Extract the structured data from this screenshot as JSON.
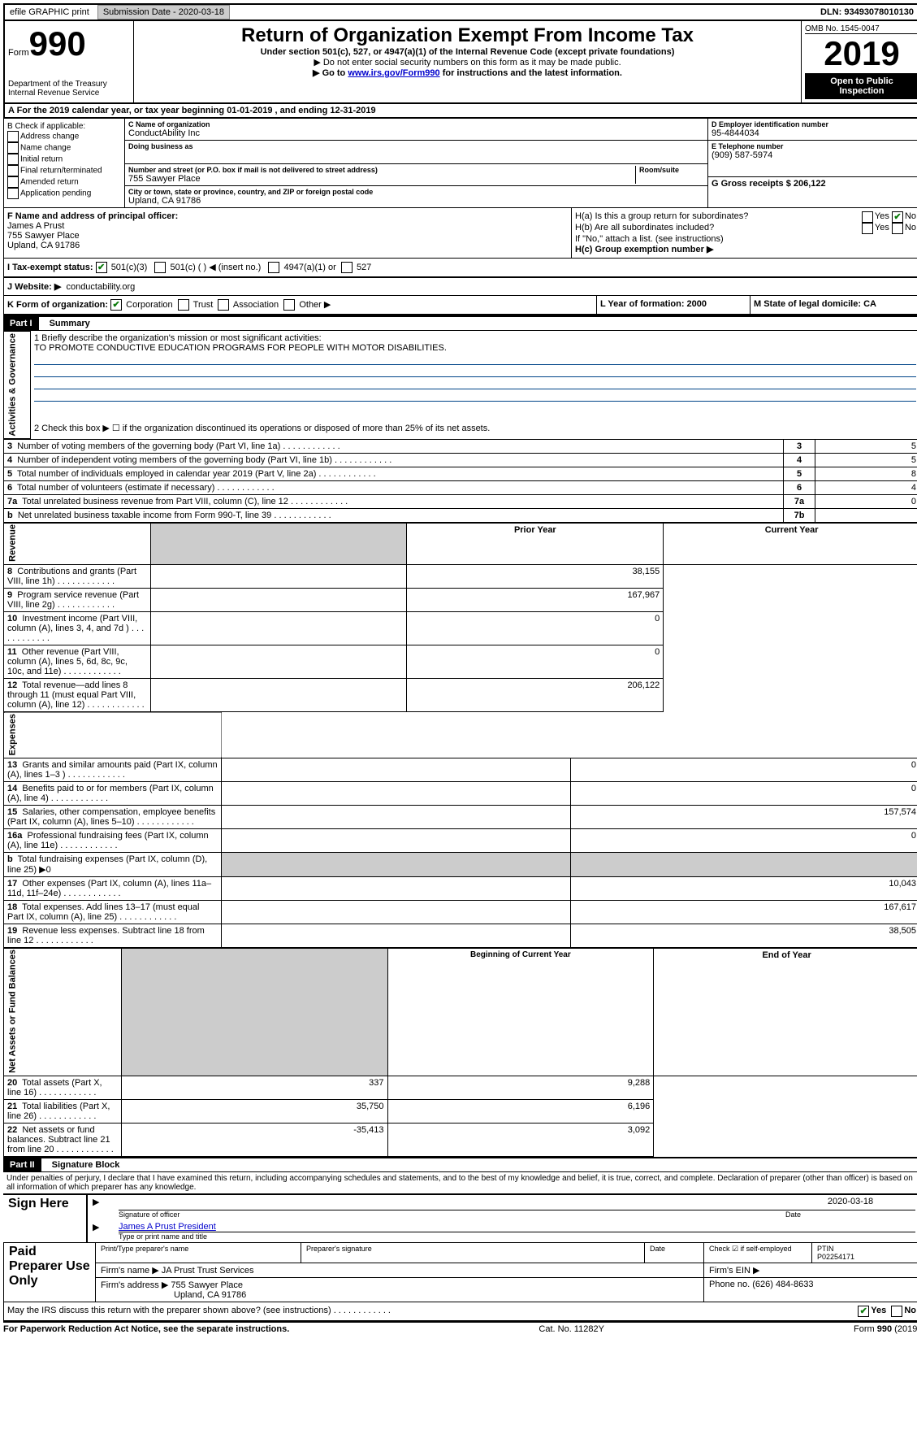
{
  "topbar": {
    "efile": "efile GRAPHIC print",
    "submission_label": "Submission Date - 2020-03-18",
    "dln_label": "DLN: 93493078010130"
  },
  "header": {
    "form_prefix": "Form",
    "form_no": "990",
    "dept": "Department of the Treasury\nInternal Revenue Service",
    "title": "Return of Organization Exempt From Income Tax",
    "subtitle": "Under section 501(c), 527, or 4947(a)(1) of the Internal Revenue Code (except private foundations)",
    "note1": "▶ Do not enter social security numbers on this form as it may be made public.",
    "note2_pre": "▶ Go to ",
    "note2_link": "www.irs.gov/Form990",
    "note2_post": " for instructions and the latest information.",
    "omb": "OMB No. 1545-0047",
    "year": "2019",
    "open": "Open to Public Inspection"
  },
  "period": {
    "line": "A For the 2019 calendar year, or tax year beginning 01-01-2019     , and ending 12-31-2019"
  },
  "boxB": {
    "label": "B Check if applicable:",
    "addr": "Address change",
    "name": "Name change",
    "initial": "Initial return",
    "final": "Final return/terminated",
    "amended": "Amended return",
    "pending": "Application pending"
  },
  "boxC": {
    "label": "C Name of organization",
    "org": "ConductAbility Inc",
    "dba_label": "Doing business as",
    "addr_label": "Number and street (or P.O. box if mail is not delivered to street address)",
    "addr": "755 Sawyer Place",
    "room_label": "Room/suite",
    "city_label": "City or town, state or province, country, and ZIP or foreign postal code",
    "city": "Upland, CA  91786"
  },
  "boxD": {
    "label": "D Employer identification number",
    "value": "95-4844034"
  },
  "boxE": {
    "label": "E Telephone number",
    "value": "(909) 587-5974"
  },
  "boxG": {
    "label": "G Gross receipts $ 206,122"
  },
  "boxF": {
    "label": "F Name and address of principal officer:",
    "name": "James A Prust",
    "addr1": "755 Sawyer Place",
    "addr2": "Upland, CA  91786"
  },
  "boxH": {
    "a_label": "H(a)  Is this a group return for subordinates?",
    "b_label": "H(b)  Are all subordinates included?",
    "b_note": "If \"No,\" attach a list. (see instructions)",
    "c_label": "H(c)  Group exemption number ▶",
    "yes": "Yes",
    "no": "No"
  },
  "boxI": {
    "label": "I    Tax-exempt status:",
    "c3": "501(c)(3)",
    "c": "501(c) (   ) ◀ (insert no.)",
    "a1": "4947(a)(1) or",
    "s527": "527"
  },
  "boxJ": {
    "label": "J   Website: ▶",
    "value": "conductability.org"
  },
  "boxK": {
    "label": "K Form of organization:",
    "corp": "Corporation",
    "trust": "Trust",
    "assoc": "Association",
    "other": "Other ▶"
  },
  "boxL": {
    "label": "L Year of formation: 2000"
  },
  "boxM": {
    "label": "M State of legal domicile: CA"
  },
  "part1": {
    "header": "Part I",
    "title": "Summary",
    "q1": "1  Briefly describe the organization's mission or most significant activities:",
    "mission": "TO PROMOTE CONDUCTIVE EDUCATION PROGRAMS FOR PEOPLE WITH MOTOR DISABILITIES.",
    "q2": "2    Check this box ▶ ☐  if the organization discontinued its operations or disposed of more than 25% of its net assets.",
    "side_ag": "Activities & Governance",
    "side_rev": "Revenue",
    "side_exp": "Expenses",
    "side_na": "Net Assets or Fund Balances",
    "rows_top": [
      {
        "n": "3",
        "label": "Number of voting members of the governing body (Part VI, line 1a)",
        "box": "3",
        "val": "5"
      },
      {
        "n": "4",
        "label": "Number of independent voting members of the governing body (Part VI, line 1b)",
        "box": "4",
        "val": "5"
      },
      {
        "n": "5",
        "label": "Total number of individuals employed in calendar year 2019 (Part V, line 2a)",
        "box": "5",
        "val": "8"
      },
      {
        "n": "6",
        "label": "Total number of volunteers (estimate if necessary)",
        "box": "6",
        "val": "4"
      },
      {
        "n": "7a",
        "label": "Total unrelated business revenue from Part VIII, column (C), line 12",
        "box": "7a",
        "val": "0"
      },
      {
        "n": "b",
        "label": "Net unrelated business taxable income from Form 990-T, line 39",
        "box": "7b",
        "val": ""
      }
    ],
    "col_prior": "Prior Year",
    "col_current": "Current Year",
    "rows_rev": [
      {
        "n": "8",
        "label": "Contributions and grants (Part VIII, line 1h)",
        "prior": "",
        "cur": "38,155"
      },
      {
        "n": "9",
        "label": "Program service revenue (Part VIII, line 2g)",
        "prior": "",
        "cur": "167,967"
      },
      {
        "n": "10",
        "label": "Investment income (Part VIII, column (A), lines 3, 4, and 7d )",
        "prior": "",
        "cur": "0"
      },
      {
        "n": "11",
        "label": "Other revenue (Part VIII, column (A), lines 5, 6d, 8c, 9c, 10c, and 11e)",
        "prior": "",
        "cur": "0"
      },
      {
        "n": "12",
        "label": "Total revenue—add lines 8 through 11 (must equal Part VIII, column (A), line 12)",
        "prior": "",
        "cur": "206,122"
      }
    ],
    "rows_exp": [
      {
        "n": "13",
        "label": "Grants and similar amounts paid (Part IX, column (A), lines 1–3 )",
        "prior": "",
        "cur": "0"
      },
      {
        "n": "14",
        "label": "Benefits paid to or for members (Part IX, column (A), line 4)",
        "prior": "",
        "cur": "0"
      },
      {
        "n": "15",
        "label": "Salaries, other compensation, employee benefits (Part IX, column (A), lines 5–10)",
        "prior": "",
        "cur": "157,574"
      },
      {
        "n": "16a",
        "label": "Professional fundraising fees (Part IX, column (A), line 11e)",
        "prior": "",
        "cur": "0"
      },
      {
        "n": "b",
        "label": "Total fundraising expenses (Part IX, column (D), line 25) ▶0",
        "prior": "SHADE",
        "cur": "SHADE"
      },
      {
        "n": "17",
        "label": "Other expenses (Part IX, column (A), lines 11a–11d, 11f–24e)",
        "prior": "",
        "cur": "10,043"
      },
      {
        "n": "18",
        "label": "Total expenses. Add lines 13–17 (must equal Part IX, column (A), line 25)",
        "prior": "",
        "cur": "167,617"
      },
      {
        "n": "19",
        "label": "Revenue less expenses. Subtract line 18 from line 12",
        "prior": "",
        "cur": "38,505"
      }
    ],
    "col_begin": "Beginning of Current Year",
    "col_end": "End of Year",
    "rows_na": [
      {
        "n": "20",
        "label": "Total assets (Part X, line 16)",
        "prior": "337",
        "cur": "9,288"
      },
      {
        "n": "21",
        "label": "Total liabilities (Part X, line 26)",
        "prior": "35,750",
        "cur": "6,196"
      },
      {
        "n": "22",
        "label": "Net assets or fund balances. Subtract line 21 from line 20",
        "prior": "-35,413",
        "cur": "3,092"
      }
    ]
  },
  "part2": {
    "header": "Part II",
    "title": "Signature Block",
    "decl": "Under penalties of perjury, I declare that I have examined this return, including accompanying schedules and statements, and to the best of my knowledge and belief, it is true, correct, and complete. Declaration of preparer (other than officer) is based on all information of which preparer has any knowledge.",
    "sign_here": "Sign Here",
    "sig_officer": "Signature of officer",
    "sig_date": "2020-03-18",
    "date_label": "Date",
    "officer_name": "James A Prust  President",
    "type_name": "Type or print name and title",
    "paid": "Paid Preparer Use Only",
    "pt_name_label": "Print/Type preparer's name",
    "pt_sig_label": "Preparer's signature",
    "pt_date_label": "Date",
    "check_self": "Check ☑ if self-employed",
    "ptin_label": "PTIN",
    "ptin": "P02254171",
    "firm_name_label": "Firm's name    ▶",
    "firm_name": "JA Prust Trust Services",
    "firm_ein_label": "Firm's EIN ▶",
    "firm_addr_label": "Firm's address ▶",
    "firm_addr1": "755 Sawyer Place",
    "firm_addr2": "Upland, CA  91786",
    "phone_label": "Phone no. (626) 484-8633",
    "discuss": "May the IRS discuss this return with the preparer shown above? (see instructions)",
    "yes": "Yes",
    "no": "No"
  },
  "footer": {
    "left": "For Paperwork Reduction Act Notice, see the separate instructions.",
    "mid": "Cat. No. 11282Y",
    "right": "Form 990 (2019)"
  }
}
